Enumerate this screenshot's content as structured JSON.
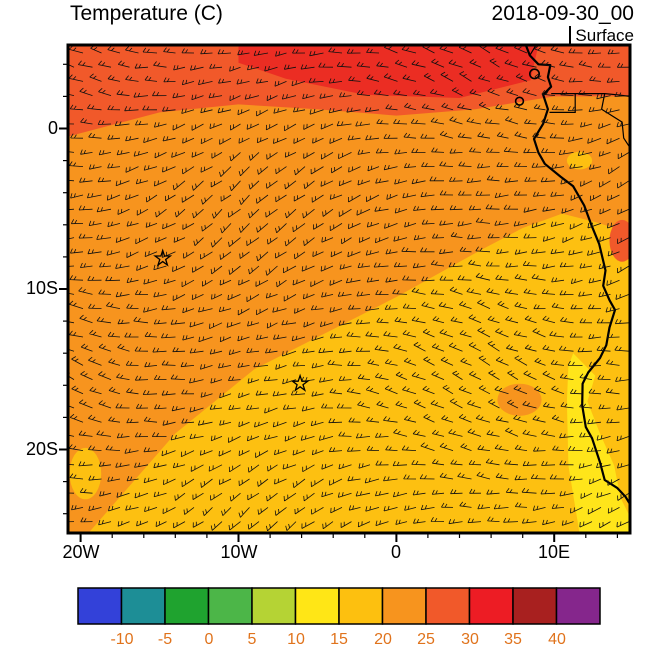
{
  "header": {
    "title": "Temperature (C)",
    "datetime": "2018-09-30_00",
    "level": "Surface"
  },
  "chart_data": {
    "type": "heatmap",
    "title": "Temperature (C)",
    "valid_time": "2018-09-30_00",
    "level": "Surface",
    "units": "C",
    "x_axis": {
      "ticks": [
        "20W",
        "10W",
        "0",
        "10E"
      ],
      "tick_lons": [
        -20,
        -10,
        0,
        10
      ],
      "range": [
        -20.8,
        14.8
      ]
    },
    "y_axis": {
      "ticks": [
        "0",
        "10S",
        "20S"
      ],
      "tick_lats": [
        0,
        -10,
        -20
      ],
      "range": [
        -25.2,
        5.2
      ]
    },
    "regions": [
      {
        "name": "base-field",
        "temp_range": "20-25",
        "color": "#F7941E",
        "shape": "full-domain"
      },
      {
        "name": "southeast-cool-wedge",
        "temp_range": "15-20",
        "color": "#FDC011",
        "polygon": [
          [
            -19.5,
            -25.2
          ],
          [
            -14,
            -19
          ],
          [
            -9,
            -15
          ],
          [
            -4.2,
            -12.6
          ],
          [
            0,
            -10.5
          ],
          [
            5.3,
            -7.6
          ],
          [
            8,
            -6.2
          ],
          [
            10.5,
            -5.3
          ],
          [
            12.5,
            -5.8
          ],
          [
            14.8,
            -6.5
          ],
          [
            14.8,
            -25.2
          ]
        ]
      },
      {
        "name": "benguela-cold-strip",
        "temp_range": "10-15",
        "color": "#FFE51A",
        "polygon": [
          [
            11.2,
            -14
          ],
          [
            12.6,
            -15.4
          ],
          [
            12.1,
            -17
          ],
          [
            12.9,
            -19
          ],
          [
            13.8,
            -21
          ],
          [
            14.2,
            -23
          ],
          [
            14.8,
            -24.2
          ],
          [
            14.8,
            -25.2
          ],
          [
            11.6,
            -25.2
          ],
          [
            10.9,
            -21
          ],
          [
            10.8,
            -17
          ],
          [
            10.9,
            -14.8
          ]
        ]
      },
      {
        "name": "north-warm-band",
        "temp_range": "25-30",
        "color": "#F1592A",
        "polygon": [
          [
            -20.8,
            5.2
          ],
          [
            14.8,
            5.2
          ],
          [
            14.8,
            2.0
          ],
          [
            10,
            2.0
          ],
          [
            5,
            1.2
          ],
          [
            0,
            0.8
          ],
          [
            -5,
            1.2
          ],
          [
            -10,
            1.5
          ],
          [
            -15,
            1.0
          ],
          [
            -20.8,
            -0.5
          ]
        ]
      },
      {
        "name": "north-hot-core",
        "temp_range": "30-35",
        "color": "#EB2D23",
        "polygon": [
          [
            -10,
            5.2
          ],
          [
            9,
            5.2
          ],
          [
            8.5,
            3.0
          ],
          [
            4,
            1.9
          ],
          [
            -2,
            2.1
          ],
          [
            -7,
            3.1
          ],
          [
            -10,
            4.1
          ]
        ]
      },
      {
        "name": "inland-warm-patch",
        "temp_range": "20-25",
        "color": "#F7941E",
        "ellipse": [
          7.8,
          -16.9,
          1.4,
          1.0
        ]
      },
      {
        "name": "coast-warm-patch",
        "temp_range": "25-30",
        "color": "#F1592A",
        "ellipse": [
          14.3,
          -7.0,
          0.8,
          1.3
        ]
      },
      {
        "name": "land-cool-spot",
        "temp_range": "15-20",
        "color": "#FDC011",
        "ellipse": [
          11.6,
          -2.0,
          0.8,
          0.55
        ]
      },
      {
        "name": "west-cool-patch",
        "temp_range": "15-20",
        "color": "#FDC011",
        "ellipse": [
          -19.7,
          -21.5,
          1.0,
          1.6
        ]
      }
    ],
    "coastline": [
      [
        8.2,
        5.2
      ],
      [
        8.45,
        4.55
      ],
      [
        9.0,
        4.0
      ],
      [
        9.75,
        3.95
      ],
      [
        9.6,
        3.2
      ],
      [
        9.8,
        2.6
      ],
      [
        9.3,
        2.1
      ],
      [
        9.6,
        1.2
      ],
      [
        9.3,
        0.3
      ],
      [
        8.72,
        -0.65
      ],
      [
        9.0,
        -1.5
      ],
      [
        9.4,
        -2.2
      ],
      [
        10.4,
        -3.0
      ],
      [
        11.2,
        -3.6
      ],
      [
        11.9,
        -4.8
      ],
      [
        12.35,
        -6.0
      ],
      [
        12.85,
        -7.2
      ],
      [
        13.25,
        -8.85
      ],
      [
        13.1,
        -9.8
      ],
      [
        13.5,
        -10.7
      ],
      [
        13.85,
        -11.3
      ],
      [
        13.5,
        -12.4
      ],
      [
        13.3,
        -13.5
      ],
      [
        12.9,
        -14.3
      ],
      [
        12.15,
        -15.2
      ],
      [
        11.8,
        -15.9
      ],
      [
        11.77,
        -17.25
      ],
      [
        12.0,
        -18.6
      ],
      [
        12.4,
        -19.3
      ],
      [
        12.9,
        -20.8
      ],
      [
        13.2,
        -21.9
      ],
      [
        14.0,
        -22.4
      ],
      [
        14.52,
        -22.95
      ],
      [
        14.8,
        -23.4
      ]
    ],
    "islands": [
      [
        7.8,
        1.7,
        0.25
      ],
      [
        8.75,
        3.4,
        0.3
      ]
    ],
    "borders": [
      [
        [
          9.81,
          2.17
        ],
        [
          11.33,
          2.17
        ],
        [
          11.33,
          1.0
        ],
        [
          9.7,
          1.0
        ]
      ],
      [
        [
          11.33,
          2.17
        ],
        [
          13.2,
          2.17
        ],
        [
          14.0,
          2.1
        ],
        [
          14.8,
          2.0
        ]
      ],
      [
        [
          8.45,
          4.55
        ],
        [
          8.85,
          5.2
        ]
      ],
      [
        [
          13.2,
          2.17
        ],
        [
          13.0,
          1.2
        ],
        [
          14.3,
          0.4
        ],
        [
          14.4,
          -0.6
        ],
        [
          14.8,
          -1.2
        ]
      ]
    ],
    "markers": [
      {
        "symbol": "star",
        "lon": -14.8,
        "lat": -8.1
      },
      {
        "symbol": "star",
        "lon": -6.1,
        "lat": -15.9
      }
    ],
    "wind_barbs": {
      "present": true,
      "color": "#101010"
    }
  },
  "colorbar": {
    "labels": [
      "-10",
      "-5",
      "0",
      "5",
      "10",
      "15",
      "20",
      "25",
      "30",
      "35",
      "40"
    ],
    "colors": [
      "#3341D9",
      "#1D8E96",
      "#1FA32F",
      "#4CB648",
      "#B5D334",
      "#FFE616",
      "#FDC00F",
      "#F7941E",
      "#F1592A",
      "#ED1C24",
      "#A8201F",
      "#85268C"
    ],
    "label_color": "#E0731C"
  }
}
